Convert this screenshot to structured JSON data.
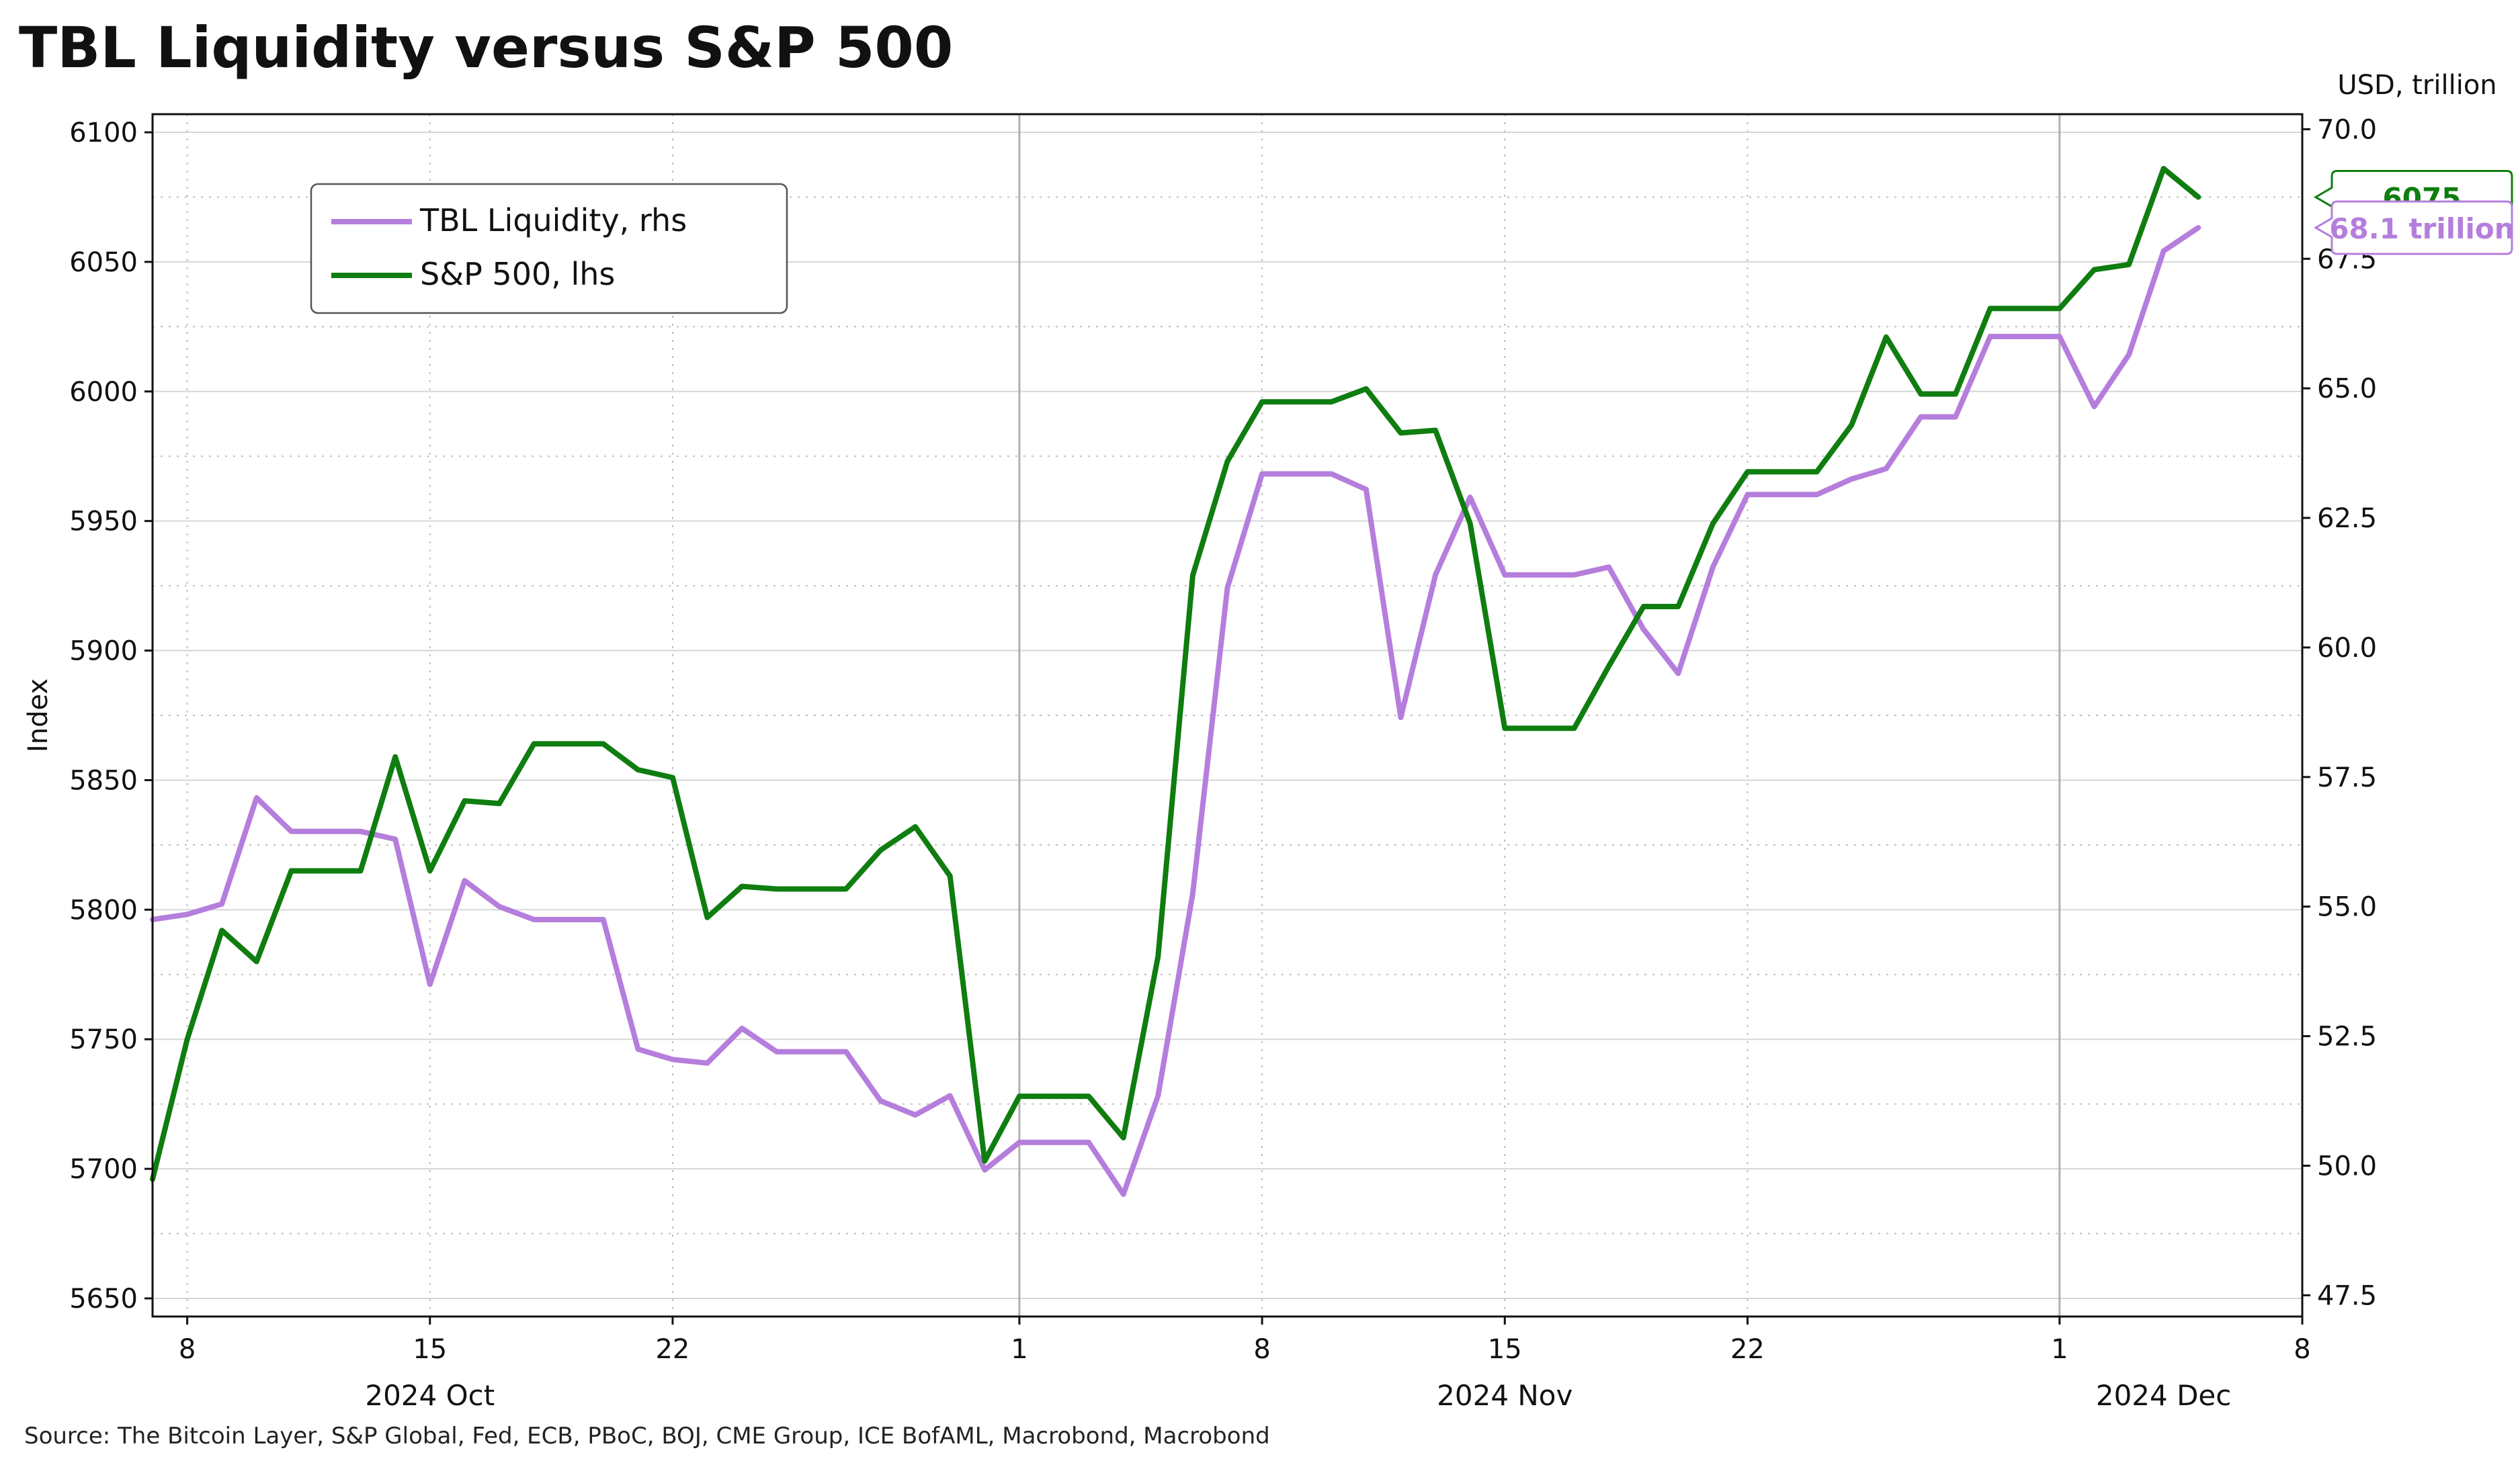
{
  "chart_data": {
    "type": "line",
    "title": "TBL Liquidity versus S&P 500",
    "ylabel": "Index",
    "y2label": "USD, trillion",
    "ylim": [
      5643,
      6107
    ],
    "y2lim": [
      47.09,
      70.29
    ],
    "left_ticks": [
      "5650",
      "5700",
      "5750",
      "5800",
      "5850",
      "5900",
      "5950",
      "6000",
      "6050",
      "6100"
    ],
    "right_ticks": [
      "47.5",
      "50.0",
      "52.5",
      "55.0",
      "57.5",
      "60.0",
      "62.5",
      "65.0",
      "67.5",
      "70.0"
    ],
    "x_start": "2024-10-07",
    "x_end": "2024-12-08",
    "x_ticks": [
      {
        "date": "2024-10-08",
        "label": "8"
      },
      {
        "date": "2024-10-15",
        "label": "15"
      },
      {
        "date": "2024-10-22",
        "label": "22"
      },
      {
        "date": "2024-11-01",
        "label": "1"
      },
      {
        "date": "2024-11-08",
        "label": "8"
      },
      {
        "date": "2024-11-15",
        "label": "15"
      },
      {
        "date": "2024-11-22",
        "label": "22"
      },
      {
        "date": "2024-12-01",
        "label": "1"
      },
      {
        "date": "2024-12-08",
        "label": "8"
      }
    ],
    "month_labels": [
      {
        "date": "2024-10-15",
        "label": "2024 Oct"
      },
      {
        "date": "2024-11-15",
        "label": "2024 Nov"
      },
      {
        "date": "2024-12-04",
        "label": "2024 Dec"
      }
    ],
    "month_dividers": [
      "2024-11-01",
      "2024-12-01"
    ],
    "grid": true,
    "legend_position": "top-left",
    "series": [
      {
        "name": "TBL Liquidity, rhs",
        "axis": "right",
        "color": "#b57edc",
        "end_label": "68.1 trillion",
        "points": [
          [
            "2024-10-07",
            54.75
          ],
          [
            "2024-10-08",
            54.85
          ],
          [
            "2024-10-09",
            55.05
          ],
          [
            "2024-10-10",
            57.1
          ],
          [
            "2024-10-11",
            56.45
          ],
          [
            "2024-10-12",
            56.45
          ],
          [
            "2024-10-13",
            56.45
          ],
          [
            "2024-10-14",
            56.3
          ],
          [
            "2024-10-15",
            53.5
          ],
          [
            "2024-10-16",
            55.5
          ],
          [
            "2024-10-17",
            55.0
          ],
          [
            "2024-10-18",
            54.75
          ],
          [
            "2024-10-19",
            54.75
          ],
          [
            "2024-10-20",
            54.75
          ],
          [
            "2024-10-21",
            52.25
          ],
          [
            "2024-10-22",
            52.05
          ],
          [
            "2024-10-23",
            51.98
          ],
          [
            "2024-10-24",
            52.65
          ],
          [
            "2024-10-25",
            52.2
          ],
          [
            "2024-10-26",
            52.2
          ],
          [
            "2024-10-27",
            52.2
          ],
          [
            "2024-10-28",
            51.25
          ],
          [
            "2024-10-29",
            50.98
          ],
          [
            "2024-10-30",
            51.35
          ],
          [
            "2024-10-31",
            49.92
          ],
          [
            "2024-11-01",
            50.45
          ],
          [
            "2024-11-02",
            50.45
          ],
          [
            "2024-11-03",
            50.45
          ],
          [
            "2024-11-04",
            49.45
          ],
          [
            "2024-11-05",
            51.35
          ],
          [
            "2024-11-06",
            55.25
          ],
          [
            "2024-11-07",
            61.15
          ],
          [
            "2024-11-08",
            63.35
          ],
          [
            "2024-11-09",
            63.35
          ],
          [
            "2024-11-10",
            63.35
          ],
          [
            "2024-11-11",
            63.05
          ],
          [
            "2024-11-12",
            58.65
          ],
          [
            "2024-11-13",
            61.4
          ],
          [
            "2024-11-14",
            62.9
          ],
          [
            "2024-11-15",
            61.4
          ],
          [
            "2024-11-16",
            61.4
          ],
          [
            "2024-11-17",
            61.4
          ],
          [
            "2024-11-18",
            61.55
          ],
          [
            "2024-11-19",
            60.35
          ],
          [
            "2024-11-20",
            59.5
          ],
          [
            "2024-11-21",
            61.55
          ],
          [
            "2024-11-22",
            62.95
          ],
          [
            "2024-11-23",
            62.95
          ],
          [
            "2024-11-24",
            62.95
          ],
          [
            "2024-11-25",
            63.25
          ],
          [
            "2024-11-26",
            63.45
          ],
          [
            "2024-11-27",
            64.45
          ],
          [
            "2024-11-28",
            64.45
          ],
          [
            "2024-11-29",
            66.0
          ],
          [
            "2024-11-30",
            66.0
          ],
          [
            "2024-12-01",
            66.0
          ],
          [
            "2024-12-02",
            64.65
          ],
          [
            "2024-12-03",
            65.65
          ],
          [
            "2024-12-04",
            67.65
          ],
          [
            "2024-12-05",
            68.1
          ]
        ]
      },
      {
        "name": "S&P 500, lhs",
        "axis": "left",
        "color": "#0f7d0f",
        "end_label": "6075",
        "points": [
          [
            "2024-10-07",
            5696
          ],
          [
            "2024-10-08",
            5750
          ],
          [
            "2024-10-09",
            5792
          ],
          [
            "2024-10-10",
            5780
          ],
          [
            "2024-10-11",
            5815
          ],
          [
            "2024-10-12",
            5815
          ],
          [
            "2024-10-13",
            5815
          ],
          [
            "2024-10-14",
            5859
          ],
          [
            "2024-10-15",
            5815
          ],
          [
            "2024-10-16",
            5842
          ],
          [
            "2024-10-17",
            5841
          ],
          [
            "2024-10-18",
            5864
          ],
          [
            "2024-10-19",
            5864
          ],
          [
            "2024-10-20",
            5864
          ],
          [
            "2024-10-21",
            5854
          ],
          [
            "2024-10-22",
            5851
          ],
          [
            "2024-10-23",
            5797
          ],
          [
            "2024-10-24",
            5809
          ],
          [
            "2024-10-25",
            5808
          ],
          [
            "2024-10-26",
            5808
          ],
          [
            "2024-10-27",
            5808
          ],
          [
            "2024-10-28",
            5823
          ],
          [
            "2024-10-29",
            5832
          ],
          [
            "2024-10-30",
            5813
          ],
          [
            "2024-10-31",
            5703
          ],
          [
            "2024-11-01",
            5728
          ],
          [
            "2024-11-02",
            5728
          ],
          [
            "2024-11-03",
            5728
          ],
          [
            "2024-11-04",
            5712
          ],
          [
            "2024-11-05",
            5782
          ],
          [
            "2024-11-06",
            5929
          ],
          [
            "2024-11-07",
            5973
          ],
          [
            "2024-11-08",
            5996
          ],
          [
            "2024-11-09",
            5996
          ],
          [
            "2024-11-10",
            5996
          ],
          [
            "2024-11-11",
            6001
          ],
          [
            "2024-11-12",
            5984
          ],
          [
            "2024-11-13",
            5985
          ],
          [
            "2024-11-14",
            5949
          ],
          [
            "2024-11-15",
            5870
          ],
          [
            "2024-11-16",
            5870
          ],
          [
            "2024-11-17",
            5870
          ],
          [
            "2024-11-18",
            5894
          ],
          [
            "2024-11-19",
            5917
          ],
          [
            "2024-11-20",
            5917
          ],
          [
            "2024-11-21",
            5949
          ],
          [
            "2024-11-22",
            5969
          ],
          [
            "2024-11-23",
            5969
          ],
          [
            "2024-11-24",
            5969
          ],
          [
            "2024-11-25",
            5987
          ],
          [
            "2024-11-26",
            6021
          ],
          [
            "2024-11-27",
            5999
          ],
          [
            "2024-11-28",
            5999
          ],
          [
            "2024-11-29",
            6032
          ],
          [
            "2024-11-30",
            6032
          ],
          [
            "2024-12-01",
            6032
          ],
          [
            "2024-12-02",
            6047
          ],
          [
            "2024-12-03",
            6049
          ],
          [
            "2024-12-04",
            6086
          ],
          [
            "2024-12-05",
            6075
          ]
        ]
      }
    ],
    "source": "Source: The Bitcoin Layer, S&P Global, Fed, ECB, PBoC, BOJ, CME Group, ICE BofAML, Macrobond, Macrobond"
  }
}
